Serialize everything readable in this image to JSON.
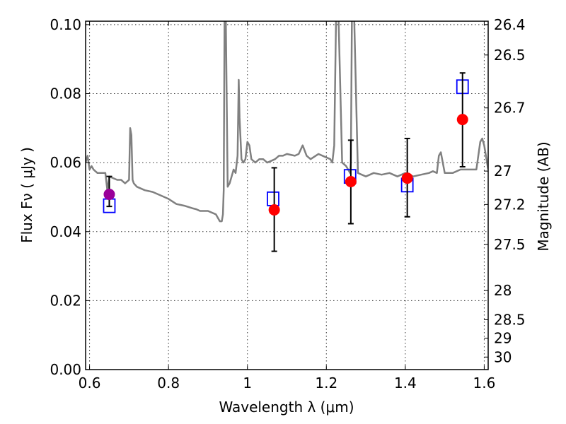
{
  "chart_data": {
    "type": "scatter",
    "xlabel": "Wavelength  λ (μm)",
    "ylabel": "Flux  Fν  ( μJy )",
    "ylabel_right": "Magnitude (AB)",
    "xlim": [
      0.59,
      1.61
    ],
    "ylim": [
      0.0,
      0.101
    ],
    "grid": true,
    "x_ticks": [
      0.6,
      0.8,
      1.0,
      1.2,
      1.4,
      1.6
    ],
    "x_tick_labels": [
      "0.6",
      "0.8",
      "1",
      "1.2",
      "1.4",
      "1.6"
    ],
    "y_ticks": [
      0.0,
      0.02,
      0.04,
      0.06,
      0.08,
      0.1
    ],
    "y_tick_labels": [
      "0.00",
      "0.02",
      "0.04",
      "0.06",
      "0.08",
      "0.10"
    ],
    "mag_ticks": [
      26.4,
      26.5,
      26.7,
      27,
      27.2,
      27.5,
      28,
      28.5,
      29,
      30
    ],
    "mag_tick_labels": [
      "26.4",
      "26.5",
      "26.7",
      "27",
      "27.2",
      "27.5",
      "28",
      "28.5",
      "29",
      "30"
    ],
    "series": [
      {
        "kind": "line",
        "color": "#808080",
        "x": [
          0.59,
          0.595,
          0.6,
          0.605,
          0.61,
          0.62,
          0.63,
          0.64,
          0.645,
          0.65,
          0.66,
          0.67,
          0.68,
          0.69,
          0.7,
          0.703,
          0.706,
          0.709,
          0.712,
          0.72,
          0.74,
          0.76,
          0.78,
          0.8,
          0.82,
          0.84,
          0.86,
          0.87,
          0.88,
          0.9,
          0.92,
          0.93,
          0.935,
          0.938,
          0.94,
          0.942,
          0.945,
          0.95,
          0.955,
          0.96,
          0.965,
          0.97,
          0.975,
          0.978,
          0.98,
          0.985,
          0.99,
          0.995,
          1.0,
          1.005,
          1.01,
          1.02,
          1.03,
          1.04,
          1.05,
          1.06,
          1.07,
          1.08,
          1.09,
          1.1,
          1.12,
          1.13,
          1.14,
          1.15,
          1.16,
          1.18,
          1.2,
          1.21,
          1.215,
          1.22,
          1.225,
          1.23,
          1.24,
          1.25,
          1.26,
          1.262,
          1.265,
          1.27,
          1.28,
          1.3,
          1.32,
          1.34,
          1.36,
          1.38,
          1.4,
          1.42,
          1.44,
          1.46,
          1.47,
          1.48,
          1.485,
          1.49,
          1.5,
          1.52,
          1.54,
          1.56,
          1.58,
          1.59,
          1.595,
          1.6,
          1.61
        ],
        "y": [
          0.06,
          0.062,
          0.058,
          0.059,
          0.058,
          0.057,
          0.057,
          0.057,
          0.052,
          0.056,
          0.0555,
          0.055,
          0.055,
          0.054,
          0.055,
          0.07,
          0.068,
          0.055,
          0.054,
          0.053,
          0.052,
          0.0515,
          0.0505,
          0.0495,
          0.048,
          0.0475,
          0.0468,
          0.0465,
          0.046,
          0.046,
          0.045,
          0.043,
          0.043,
          0.045,
          0.052,
          0.102,
          0.105,
          0.053,
          0.054,
          0.056,
          0.058,
          0.057,
          0.062,
          0.084,
          0.073,
          0.061,
          0.06,
          0.061,
          0.066,
          0.065,
          0.061,
          0.06,
          0.061,
          0.061,
          0.06,
          0.0605,
          0.061,
          0.062,
          0.062,
          0.0625,
          0.062,
          0.0625,
          0.065,
          0.062,
          0.061,
          0.0625,
          0.0615,
          0.061,
          0.06,
          0.065,
          0.105,
          0.106,
          0.06,
          0.059,
          0.057,
          0.06,
          0.105,
          0.105,
          0.057,
          0.056,
          0.057,
          0.0565,
          0.057,
          0.056,
          0.057,
          0.056,
          0.0565,
          0.057,
          0.0575,
          0.057,
          0.062,
          0.063,
          0.057,
          0.057,
          0.058,
          0.058,
          0.058,
          0.066,
          0.067,
          0.065,
          0.058
        ]
      },
      {
        "kind": "open-squares",
        "color": "#0000ff",
        "x": [
          0.65,
          1.065,
          1.26,
          1.405,
          1.545
        ],
        "y": [
          0.0475,
          0.0495,
          0.056,
          0.0535,
          0.082
        ]
      },
      {
        "kind": "points-with-errorbars",
        "color": "#ff0000",
        "x": [
          1.068,
          1.262,
          1.405,
          1.545
        ],
        "y": [
          0.0463,
          0.0545,
          0.0555,
          0.0725
        ],
        "yerr_low": [
          0.0343,
          0.0423,
          0.0443,
          0.0588
        ],
        "yerr_high": [
          0.0585,
          0.0665,
          0.067,
          0.086
        ]
      },
      {
        "kind": "points-with-errorbars",
        "color": "#990099",
        "x": [
          0.65
        ],
        "y": [
          0.0508
        ],
        "yerr_low": [
          0.0473
        ],
        "yerr_high": [
          0.056
        ]
      }
    ]
  }
}
